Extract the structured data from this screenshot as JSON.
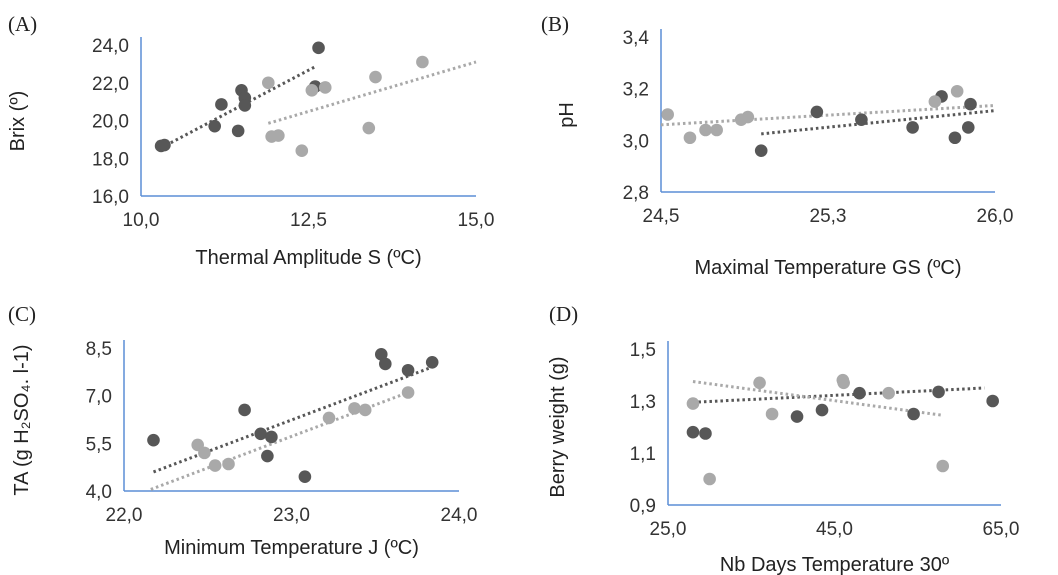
{
  "colors": {
    "dark": "#575757",
    "light": "#a9a9a9",
    "axis": "#5b8ed6"
  },
  "chart_data": [
    {
      "type": "scatter",
      "panel_label": "(A)",
      "xlabel": "Thermal Amplitude S (ºC)",
      "ylabel": "Brix (º)",
      "xlim": [
        10.0,
        15.0
      ],
      "ylim": [
        16.0,
        24.0
      ],
      "xticks": [
        "10,0",
        "12,5",
        "15,0"
      ],
      "yticks": [
        "16,0",
        "18,0",
        "20,0",
        "22,0",
        "24,0"
      ],
      "series": [
        {
          "style": "dark",
          "x": [
            10.3,
            10.35,
            11.1,
            11.2,
            11.45,
            11.5,
            11.55,
            11.55,
            12.6,
            12.65
          ],
          "y": [
            18.65,
            18.7,
            19.7,
            20.85,
            19.45,
            21.6,
            21.2,
            20.8,
            21.8,
            23.85
          ],
          "trend": [
            [
              10.3,
              18.55
            ],
            [
              12.6,
              22.85
            ]
          ]
        },
        {
          "style": "light",
          "x": [
            11.9,
            11.95,
            12.05,
            12.4,
            12.55,
            12.75,
            13.4,
            13.5,
            14.2
          ],
          "y": [
            22.0,
            19.15,
            19.2,
            18.4,
            21.6,
            21.75,
            19.6,
            22.3,
            23.1
          ],
          "trend": [
            [
              11.9,
              19.85
            ],
            [
              15.0,
              23.1
            ]
          ]
        }
      ]
    },
    {
      "type": "scatter",
      "panel_label": "(B)",
      "xlabel": "Maximal Temperature GS (ºC)",
      "ylabel": "pH",
      "xlim": [
        24.5,
        26.0
      ],
      "ylim": [
        2.8,
        3.4
      ],
      "xticks": [
        "24,5",
        "25,3",
        "26,0"
      ],
      "yticks": [
        "2,8",
        "3,0",
        "3,2",
        "3,4"
      ],
      "series": [
        {
          "style": "dark",
          "x": [
            24.95,
            25.2,
            25.4,
            25.63,
            25.76,
            25.82,
            25.88,
            25.89
          ],
          "y": [
            2.96,
            3.11,
            3.08,
            3.05,
            3.17,
            3.01,
            3.05,
            3.14
          ],
          "trend": [
            [
              24.95,
              3.025
            ],
            [
              26.0,
              3.115
            ]
          ]
        },
        {
          "style": "light",
          "x": [
            24.53,
            24.63,
            24.7,
            24.75,
            24.86,
            24.89,
            25.73,
            25.83
          ],
          "y": [
            3.1,
            3.01,
            3.04,
            3.04,
            3.08,
            3.09,
            3.15,
            3.19
          ],
          "trend": [
            [
              24.5,
              3.06
            ],
            [
              26.0,
              3.135
            ]
          ]
        }
      ]
    },
    {
      "type": "scatter",
      "panel_label": "(C)",
      "xlabel": "Minimum Temperature J (ºC)",
      "ylabel": "TA (g H₂SO₄. l-1)",
      "xlim": [
        22.0,
        24.5
      ],
      "ylim": [
        4.0,
        8.5
      ],
      "xticks": [
        "22,0",
        "23,0",
        "24,0"
      ],
      "yticks": [
        "4,0",
        "5,5",
        "7,0",
        "8,5"
      ],
      "series": [
        {
          "style": "dark",
          "x": [
            22.22,
            22.9,
            23.02,
            23.07,
            23.1,
            23.35,
            23.92,
            23.95,
            24.12,
            24.3
          ],
          "y": [
            5.6,
            6.55,
            5.8,
            5.1,
            5.7,
            4.45,
            8.3,
            8.0,
            7.8,
            8.05
          ],
          "trend": [
            [
              22.22,
              4.6
            ],
            [
              24.3,
              7.9
            ]
          ]
        },
        {
          "style": "light",
          "x": [
            22.55,
            22.6,
            22.68,
            22.78,
            23.53,
            23.72,
            23.8,
            24.12
          ],
          "y": [
            5.45,
            5.2,
            4.8,
            4.85,
            6.3,
            6.6,
            6.55,
            7.1
          ],
          "trend": [
            [
              22.2,
              4.05
            ],
            [
              24.12,
              7.1
            ]
          ]
        }
      ]
    },
    {
      "type": "scatter",
      "panel_label": "(D)",
      "xlabel": "Nb Days Temperature 30º",
      "ylabel": "Berry weight (g)",
      "xlim": [
        25.0,
        65.0
      ],
      "ylim": [
        0.9,
        1.5
      ],
      "xticks": [
        "25,0",
        "45,0",
        "65,0"
      ],
      "yticks": [
        "0,9",
        "1,1",
        "1,3",
        "1,5"
      ],
      "series": [
        {
          "style": "dark",
          "x": [
            28.0,
            29.5,
            40.5,
            43.5,
            48.0,
            54.5,
            57.5,
            64.0
          ],
          "y": [
            1.18,
            1.175,
            1.24,
            1.265,
            1.33,
            1.25,
            1.335,
            1.3
          ],
          "trend": [
            [
              28.0,
              1.295
            ],
            [
              63.0,
              1.35
            ]
          ]
        },
        {
          "style": "light",
          "x": [
            28.0,
            30.0,
            36.0,
            37.5,
            46.0,
            46.1,
            51.5,
            58.0
          ],
          "y": [
            1.29,
            1.0,
            1.37,
            1.25,
            1.38,
            1.37,
            1.33,
            1.05
          ],
          "trend": [
            [
              28.0,
              1.375
            ],
            [
              58.0,
              1.245
            ]
          ]
        }
      ]
    }
  ]
}
